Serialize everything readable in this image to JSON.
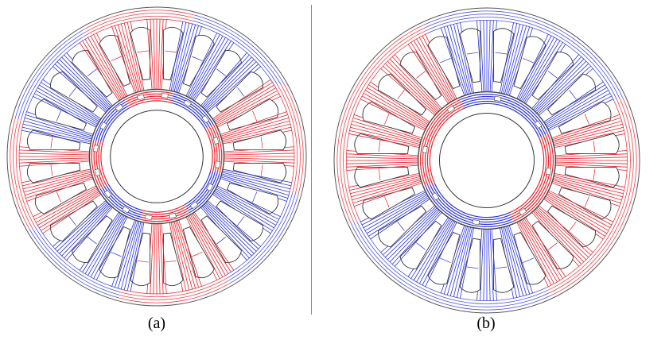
{
  "panels": [
    {
      "label": "(a)",
      "slot_count": 24,
      "pole_count": 8,
      "pole_phase_deg": 82,
      "rotor_phase_deg": 30,
      "inner_colors": [
        "#e8202a",
        "#1f2ad6"
      ]
    },
    {
      "label": "(b)",
      "slot_count": 24,
      "pole_count": 4,
      "pole_phase_deg": 20,
      "rotor_phase_deg": 10,
      "inner_colors": [
        "#e8202a",
        "#1f2ad6"
      ]
    }
  ],
  "colors": {
    "north_flux": "#e8202a",
    "south_flux": "#2a32d8",
    "outline": "#555555",
    "divider": "#e06070",
    "background": "#ffffff"
  }
}
